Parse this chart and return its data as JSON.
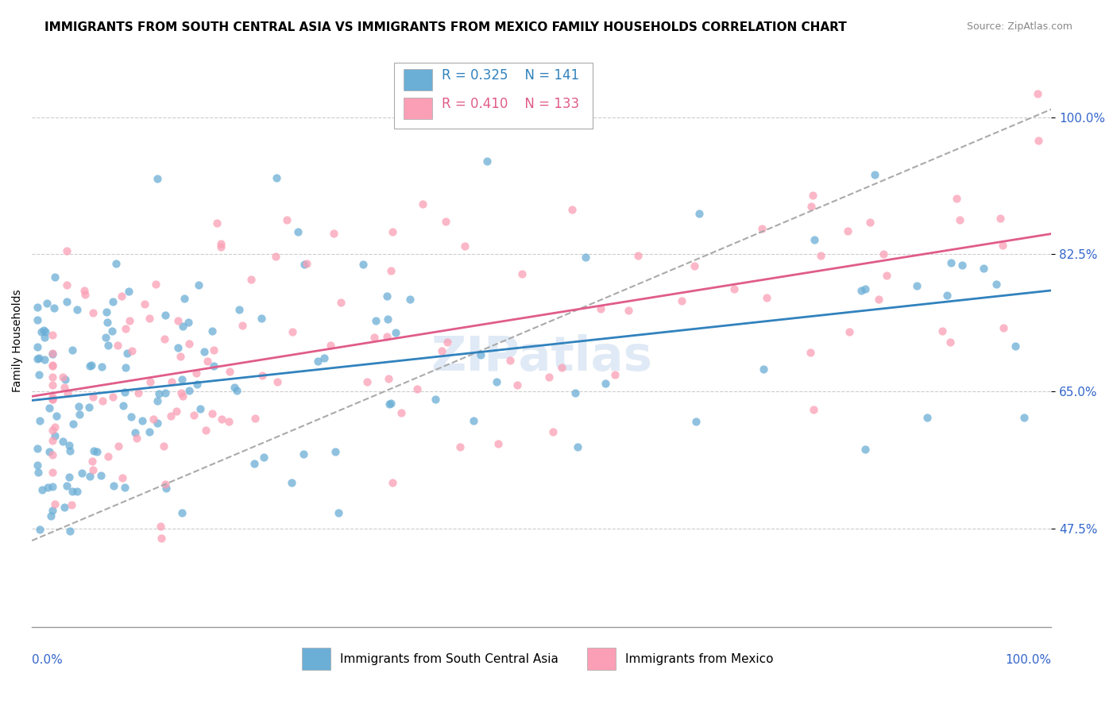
{
  "title": "IMMIGRANTS FROM SOUTH CENTRAL ASIA VS IMMIGRANTS FROM MEXICO FAMILY HOUSEHOLDS CORRELATION CHART",
  "source": "Source: ZipAtlas.com",
  "ylabel": "Family Households",
  "ytick_labels": [
    "47.5%",
    "65.0%",
    "82.5%",
    "100.0%"
  ],
  "ytick_values": [
    0.475,
    0.65,
    0.825,
    1.0
  ],
  "xlim": [
    0.0,
    1.0
  ],
  "ylim": [
    0.35,
    1.08
  ],
  "legend_blue_r": "R = 0.325",
  "legend_blue_n": "N = 141",
  "legend_pink_r": "R = 0.410",
  "legend_pink_n": "N = 133",
  "legend_label_blue": "Immigrants from South Central Asia",
  "legend_label_pink": "Immigrants from Mexico",
  "blue_color": "#6baed6",
  "pink_color": "#fa9fb5",
  "trend_blue_color": "#3182bd",
  "trend_pink_color": "#e05c8a",
  "trend_dash_color": "#aaaaaa",
  "watermark": "ZIPatlas",
  "title_fontsize": 11,
  "source_fontsize": 9,
  "axis_label_fontsize": 10,
  "tick_label_color": "#3366cc"
}
